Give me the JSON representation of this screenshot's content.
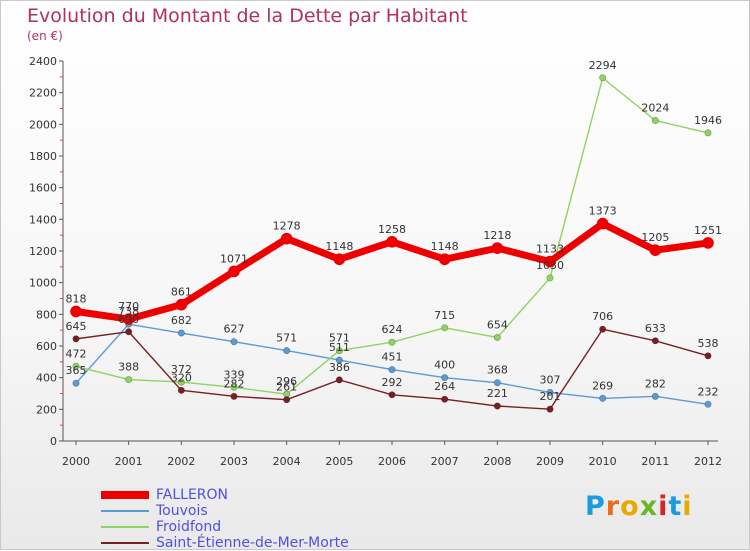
{
  "chart_data": {
    "type": "line",
    "title": "Evolution du Montant de la Dette par Habitant",
    "subtitle": "(en €)",
    "xlabel": "",
    "ylabel": "",
    "x": [
      "2000",
      "2001",
      "2002",
      "2003",
      "2004",
      "2005",
      "2006",
      "2007",
      "2008",
      "2009",
      "2010",
      "2011",
      "2012"
    ],
    "ylim": [
      0,
      2400
    ],
    "yticks": [
      0,
      200,
      400,
      600,
      800,
      1000,
      1200,
      1400,
      1600,
      1800,
      2000,
      2200,
      2400
    ],
    "grid": false,
    "legend_position": "bottom-left",
    "series": [
      {
        "name": "FALLERON",
        "color": "#ee0000",
        "values": [
          818,
          770,
          861,
          1071,
          1278,
          1148,
          1258,
          1148,
          1218,
          1133,
          1373,
          1205,
          1251
        ]
      },
      {
        "name": "Touvois",
        "color": "#5b9bd5",
        "values": [
          365,
          738,
          682,
          627,
          571,
          511,
          451,
          400,
          368,
          307,
          269,
          282,
          232
        ]
      },
      {
        "name": "Froidfond",
        "color": "#8fd460",
        "values": [
          472,
          388,
          372,
          339,
          296,
          571,
          624,
          715,
          654,
          1030,
          2294,
          2024,
          1946
        ]
      },
      {
        "name": "Saint-Étienne-de-Mer-Morte",
        "color": "#7a1e24",
        "values": [
          645,
          690,
          320,
          282,
          261,
          386,
          292,
          264,
          221,
          201,
          706,
          633,
          538
        ]
      }
    ]
  },
  "logo": {
    "letters": [
      "P",
      "r",
      "o",
      "x",
      "i",
      "t",
      "i"
    ]
  }
}
